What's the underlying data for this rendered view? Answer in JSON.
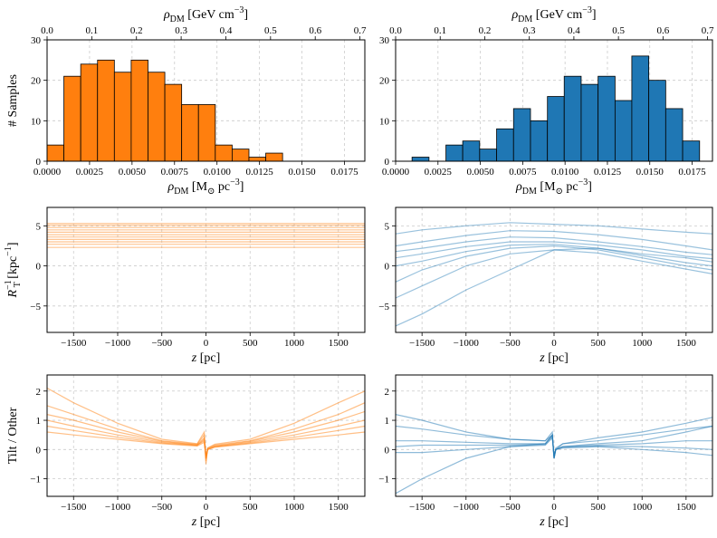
{
  "chart_data": [
    {
      "type": "histogram",
      "color": "#ff7f0e",
      "edgecolor": "#000000",
      "grid": true,
      "bins": [
        0,
        0.00099,
        0.00198,
        0.00297,
        0.00396,
        0.00495,
        0.00594,
        0.00693,
        0.00792,
        0.00891,
        0.0099,
        0.01089,
        0.01188,
        0.01287,
        0.01386
      ],
      "values": [
        4,
        21,
        24,
        25,
        22,
        25,
        22,
        19,
        14,
        14,
        4,
        3,
        1,
        2
      ],
      "xlim": [
        0,
        0.0187
      ],
      "xticks": [
        {
          "value": 0,
          "label": "0.0000"
        },
        0.0025,
        {
          "value": 0.005,
          "label": "0.0050"
        },
        0.0075,
        {
          "value": 0.01,
          "label": "0.0100"
        },
        0.0125,
        {
          "value": 0.015,
          "label": "0.0150"
        },
        0.0175
      ],
      "ylim": [
        0,
        30
      ],
      "yticks": [
        0,
        10,
        20,
        30
      ],
      "x2lim": [
        0,
        0.711
      ],
      "x2ticks": [
        {
          "value": 0,
          "label": "0.0"
        },
        0.1,
        0.2,
        0.3,
        0.4,
        0.5,
        0.6,
        0.7
      ],
      "xlabel": [
        {
          "text": "ρ",
          "italic": true
        },
        {
          "text": "DM",
          "script": "sub"
        },
        {
          "text": " [M"
        },
        {
          "text": "⊙",
          "script": "sub"
        },
        {
          "text": " pc"
        },
        {
          "text": "−3",
          "script": "sup"
        },
        {
          "text": "]"
        }
      ],
      "x2label": [
        {
          "text": "ρ",
          "italic": true
        },
        {
          "text": "DM",
          "script": "sub"
        },
        {
          "text": " [GeV cm"
        },
        {
          "text": "−3",
          "script": "sup"
        },
        {
          "text": "]"
        }
      ],
      "ylabel": [
        {
          "text": "# Samples"
        }
      ]
    },
    {
      "type": "histogram",
      "color": "#1f77b4",
      "edgecolor": "#000000",
      "grid": true,
      "bins": [
        0.00097,
        0.00197,
        0.00297,
        0.00396,
        0.00496,
        0.00596,
        0.00696,
        0.00796,
        0.00896,
        0.00995,
        0.01095,
        0.01195,
        0.01295,
        0.01394,
        0.01494,
        0.01594,
        0.01694,
        0.01794
      ],
      "values": [
        1,
        0,
        4,
        5,
        3,
        8,
        13,
        10,
        16,
        21,
        19,
        21,
        15,
        26,
        20,
        13,
        5
      ],
      "xlim": [
        0,
        0.0187
      ],
      "xticks": [
        {
          "value": 0,
          "label": "0.0000"
        },
        0.0025,
        {
          "value": 0.005,
          "label": "0.0050"
        },
        0.0075,
        {
          "value": 0.01,
          "label": "0.0100"
        },
        0.0125,
        {
          "value": 0.015,
          "label": "0.0150"
        },
        0.0175
      ],
      "ylim": [
        0,
        30
      ],
      "yticks": [
        0,
        10,
        20,
        30
      ],
      "x2lim": [
        0,
        0.711
      ],
      "x2ticks": [
        {
          "value": 0,
          "label": "0.0"
        },
        0.1,
        0.2,
        0.3,
        0.4,
        0.5,
        0.6,
        0.7
      ],
      "xlabel": [
        {
          "text": "ρ",
          "italic": true
        },
        {
          "text": "DM",
          "script": "sub"
        },
        {
          "text": " [M"
        },
        {
          "text": "⊙",
          "script": "sub"
        },
        {
          "text": " pc"
        },
        {
          "text": "−3",
          "script": "sup"
        },
        {
          "text": "]"
        }
      ],
      "x2label": [
        {
          "text": "ρ",
          "italic": true
        },
        {
          "text": "DM",
          "script": "sub"
        },
        {
          "text": " [GeV cm"
        },
        {
          "text": "−3",
          "script": "sup"
        },
        {
          "text": "]"
        }
      ]
    },
    {
      "type": "line",
      "color": "#ff7f0e",
      "alpha": 0.45,
      "grid": true,
      "x": [
        -1800,
        1800
      ],
      "series": [
        {
          "values": [
            2.3,
            2.3
          ]
        },
        {
          "values": [
            2.7,
            2.7
          ]
        },
        {
          "values": [
            3.0,
            3.0
          ]
        },
        {
          "values": [
            3.3,
            3.3
          ]
        },
        {
          "values": [
            3.6,
            3.6
          ]
        },
        {
          "values": [
            3.9,
            3.9
          ]
        },
        {
          "values": [
            4.2,
            4.2
          ]
        },
        {
          "values": [
            4.5,
            4.5
          ]
        },
        {
          "values": [
            4.8,
            4.8
          ]
        },
        {
          "values": [
            5.1,
            5.1
          ]
        },
        {
          "values": [
            5.3,
            5.3
          ]
        }
      ],
      "xlim": [
        -1800,
        1800
      ],
      "xticks": [
        {
          "value": -1500,
          "label": "−1500"
        },
        {
          "value": -1000,
          "label": "−1000"
        },
        {
          "value": -500,
          "label": "−500"
        },
        0,
        500,
        1000,
        1500
      ],
      "ylim": [
        -8.3,
        7.3
      ],
      "yticks": [
        {
          "value": -5,
          "label": "−5"
        },
        0,
        5
      ],
      "xlabel": [
        {
          "text": "z",
          "italic": true
        },
        {
          "text": " [pc]"
        }
      ],
      "ylabel": [
        {
          "text": "R",
          "italic": true
        },
        {
          "text": "−1",
          "script": "sup"
        },
        {
          "text": "T",
          "script": "subafter"
        },
        {
          "text": " [kpc"
        },
        {
          "text": "−1",
          "script": "sup"
        },
        {
          "text": "]"
        }
      ]
    },
    {
      "type": "line",
      "color": "#1f77b4",
      "alpha": 0.45,
      "grid": true,
      "x": [
        -1800,
        -1500,
        -1000,
        -500,
        0,
        500,
        1000,
        1500,
        1800
      ],
      "series": [
        {
          "values": [
            1.0,
            1.5,
            2.4,
            3.0,
            3.0,
            2.6,
            2.0,
            1.2,
            0.9
          ]
        },
        {
          "values": [
            0,
            0.6,
            1.8,
            2.6,
            2.7,
            2.2,
            1.3,
            0.4,
            0
          ]
        },
        {
          "values": [
            2.5,
            3,
            3.8,
            4.4,
            4.3,
            3.9,
            3.3,
            2.5,
            2
          ]
        },
        {
          "values": [
            -2,
            -0.5,
            1.2,
            2.2,
            2.5,
            2.0,
            1.0,
            0,
            -0.5
          ]
        },
        {
          "values": [
            -7.5,
            -6,
            -3,
            -0.5,
            2,
            2.2,
            1.5,
            1,
            0.5
          ]
        },
        {
          "values": [
            4,
            4.5,
            5,
            5.4,
            5.2,
            5,
            4.6,
            4.2,
            4
          ]
        },
        {
          "values": [
            1.8,
            2.2,
            3.0,
            3.6,
            3.5,
            3.0,
            2.4,
            1.7,
            1.4
          ]
        },
        {
          "values": [
            -4,
            -2.5,
            0,
            1.5,
            2.0,
            1.6,
            0.6,
            -0.4,
            -1
          ]
        }
      ],
      "xlim": [
        -1800,
        1800
      ],
      "xticks": [
        {
          "value": -1500,
          "label": "−1500"
        },
        {
          "value": -1000,
          "label": "−1000"
        },
        {
          "value": -500,
          "label": "−500"
        },
        0,
        500,
        1000,
        1500
      ],
      "ylim": [
        -8.3,
        7.3
      ],
      "yticks": [
        {
          "value": -5,
          "label": "−5"
        },
        0,
        5
      ],
      "xlabel": [
        {
          "text": "z",
          "italic": true
        },
        {
          "text": " [pc]"
        }
      ]
    },
    {
      "type": "line",
      "color": "#ff7f0e",
      "alpha": 0.5,
      "grid": true,
      "x": [
        -1800,
        -1500,
        -1000,
        -500,
        -100,
        -20,
        0,
        20,
        100,
        500,
        1000,
        1500,
        1800
      ],
      "series": [
        {
          "values": [
            1.0,
            0.8,
            0.5,
            0.25,
            0.15,
            0.3,
            -0.3,
            0.0,
            0.1,
            0.25,
            0.5,
            0.8,
            1.0
          ]
        },
        {
          "values": [
            1.5,
            1.2,
            0.7,
            0.3,
            0.18,
            0.5,
            -0.4,
            0.05,
            0.15,
            0.3,
            0.7,
            1.2,
            1.6
          ]
        },
        {
          "values": [
            0.6,
            0.5,
            0.35,
            0.2,
            0.12,
            0.25,
            -0.2,
            0.0,
            0.08,
            0.2,
            0.35,
            0.5,
            0.6
          ]
        },
        {
          "values": [
            2.1,
            1.6,
            0.9,
            0.35,
            0.2,
            0.6,
            -0.5,
            0.05,
            0.18,
            0.35,
            0.9,
            1.6,
            2.0
          ]
        },
        {
          "values": [
            1.2,
            1.0,
            0.6,
            0.28,
            0.16,
            0.4,
            -0.3,
            0.02,
            0.12,
            0.28,
            0.6,
            1.0,
            1.3
          ]
        },
        {
          "values": [
            0.8,
            0.65,
            0.42,
            0.22,
            0.14,
            0.35,
            -0.25,
            0.0,
            0.1,
            0.22,
            0.42,
            0.65,
            0.8
          ]
        }
      ],
      "xlim": [
        -1800,
        1800
      ],
      "xticks": [
        {
          "value": -1500,
          "label": "−1500"
        },
        {
          "value": -1000,
          "label": "−1000"
        },
        {
          "value": -500,
          "label": "−500"
        },
        0,
        500,
        1000,
        1500
      ],
      "ylim": [
        -1.6,
        2.55
      ],
      "yticks": [
        {
          "value": -1,
          "label": "−1"
        },
        0,
        1,
        2
      ],
      "xlabel": [
        {
          "text": "z",
          "italic": true
        },
        {
          "text": " [pc]"
        }
      ],
      "ylabel": [
        {
          "text": "Tilt / Other"
        }
      ]
    },
    {
      "type": "line",
      "color": "#1f77b4",
      "alpha": 0.5,
      "grid": true,
      "x": [
        -1800,
        -1500,
        -1000,
        -500,
        -100,
        -20,
        0,
        20,
        100,
        500,
        1000,
        1500,
        1800
      ],
      "series": [
        {
          "values": [
            0.3,
            0.3,
            0.25,
            0.2,
            0.2,
            0.5,
            -0.3,
            0.0,
            0.1,
            0.15,
            0.2,
            0.3,
            0.3
          ]
        },
        {
          "values": [
            0.8,
            0.7,
            0.5,
            0.35,
            0.3,
            0.6,
            -0.3,
            0.05,
            0.2,
            0.3,
            0.5,
            0.7,
            0.8
          ]
        },
        {
          "values": [
            -0.1,
            -0.1,
            0,
            0.1,
            0.15,
            0.4,
            -0.2,
            0,
            0.05,
            0.1,
            0.0,
            -0.1,
            -0.2
          ]
        },
        {
          "values": [
            -1.5,
            -1.0,
            -0.3,
            0.1,
            0.2,
            0.5,
            -0.3,
            0.0,
            0.1,
            0.2,
            0.3,
            0.6,
            0.8
          ]
        },
        {
          "values": [
            1.2,
            1.0,
            0.6,
            0.35,
            0.3,
            0.5,
            -0.3,
            0,
            0.2,
            0.4,
            0.6,
            0.9,
            1.1
          ]
        },
        {
          "values": [
            0.1,
            0.15,
            0.15,
            0.15,
            0.18,
            0.45,
            -0.25,
            0.0,
            0.08,
            0.12,
            0.1,
            0.05,
            0.0
          ]
        }
      ],
      "xlim": [
        -1800,
        1800
      ],
      "xticks": [
        {
          "value": -1500,
          "label": "−1500"
        },
        {
          "value": -1000,
          "label": "−1000"
        },
        {
          "value": -500,
          "label": "−500"
        },
        0,
        500,
        1000,
        1500
      ],
      "ylim": [
        -1.6,
        2.55
      ],
      "yticks": [
        {
          "value": -1,
          "label": "−1"
        },
        0,
        1,
        2
      ],
      "xlabel": [
        {
          "text": "z",
          "italic": true
        },
        {
          "text": " [pc]"
        }
      ]
    }
  ]
}
